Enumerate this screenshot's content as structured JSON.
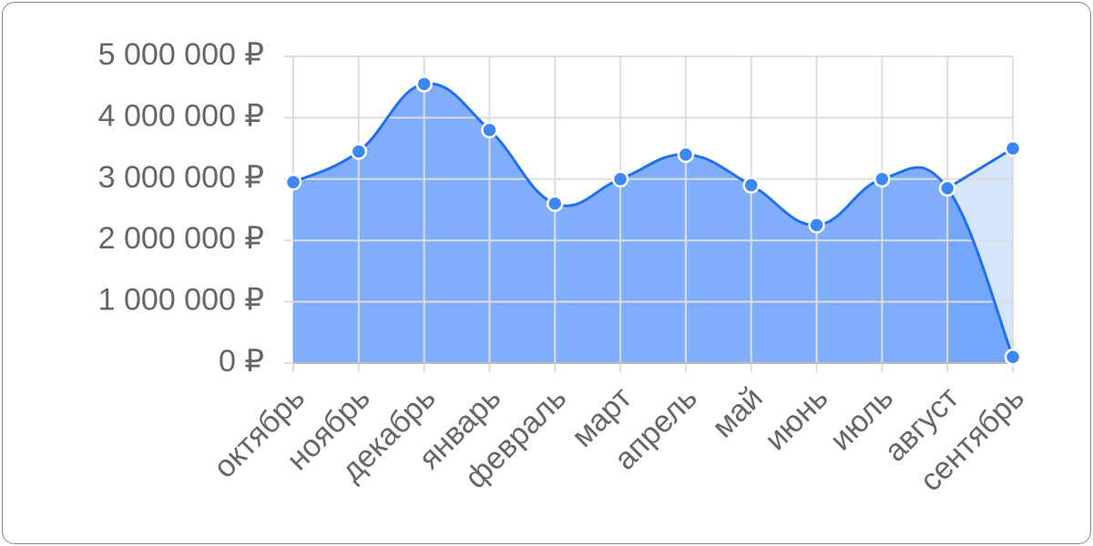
{
  "chart_data": {
    "type": "area",
    "categories": [
      "октябрь",
      "ноябрь",
      "декабрь",
      "январь",
      "февраль",
      "март",
      "апрель",
      "май",
      "июнь",
      "июль",
      "август",
      "сентябрь"
    ],
    "series": [
      {
        "color": "#1f6ff2",
        "fill": "rgba(70,135,250,0.68)",
        "smooth": true,
        "values": [
          2950000,
          3450000,
          4550000,
          3800000,
          2600000,
          3000000,
          3400000,
          2900000,
          2250000,
          3000000,
          2850000,
          100000
        ]
      },
      {
        "color": "#1f6ff2",
        "fill": "rgba(70,135,250,0.22)",
        "smooth": false,
        "values": [
          null,
          null,
          null,
          null,
          null,
          null,
          null,
          null,
          null,
          null,
          2850000,
          3500000
        ]
      }
    ],
    "ylim": [
      0,
      5000000
    ],
    "yticks": [
      {
        "value": 0,
        "label": "0 ₽"
      },
      {
        "value": 1000000,
        "label": "1 000 000 ₽"
      },
      {
        "value": 2000000,
        "label": "2 000 000 ₽"
      },
      {
        "value": 3000000,
        "label": "3 000 000 ₽"
      },
      {
        "value": 4000000,
        "label": "4 000 000 ₽"
      },
      {
        "value": 5000000,
        "label": "5 000 000 ₽"
      }
    ],
    "grid": true
  }
}
